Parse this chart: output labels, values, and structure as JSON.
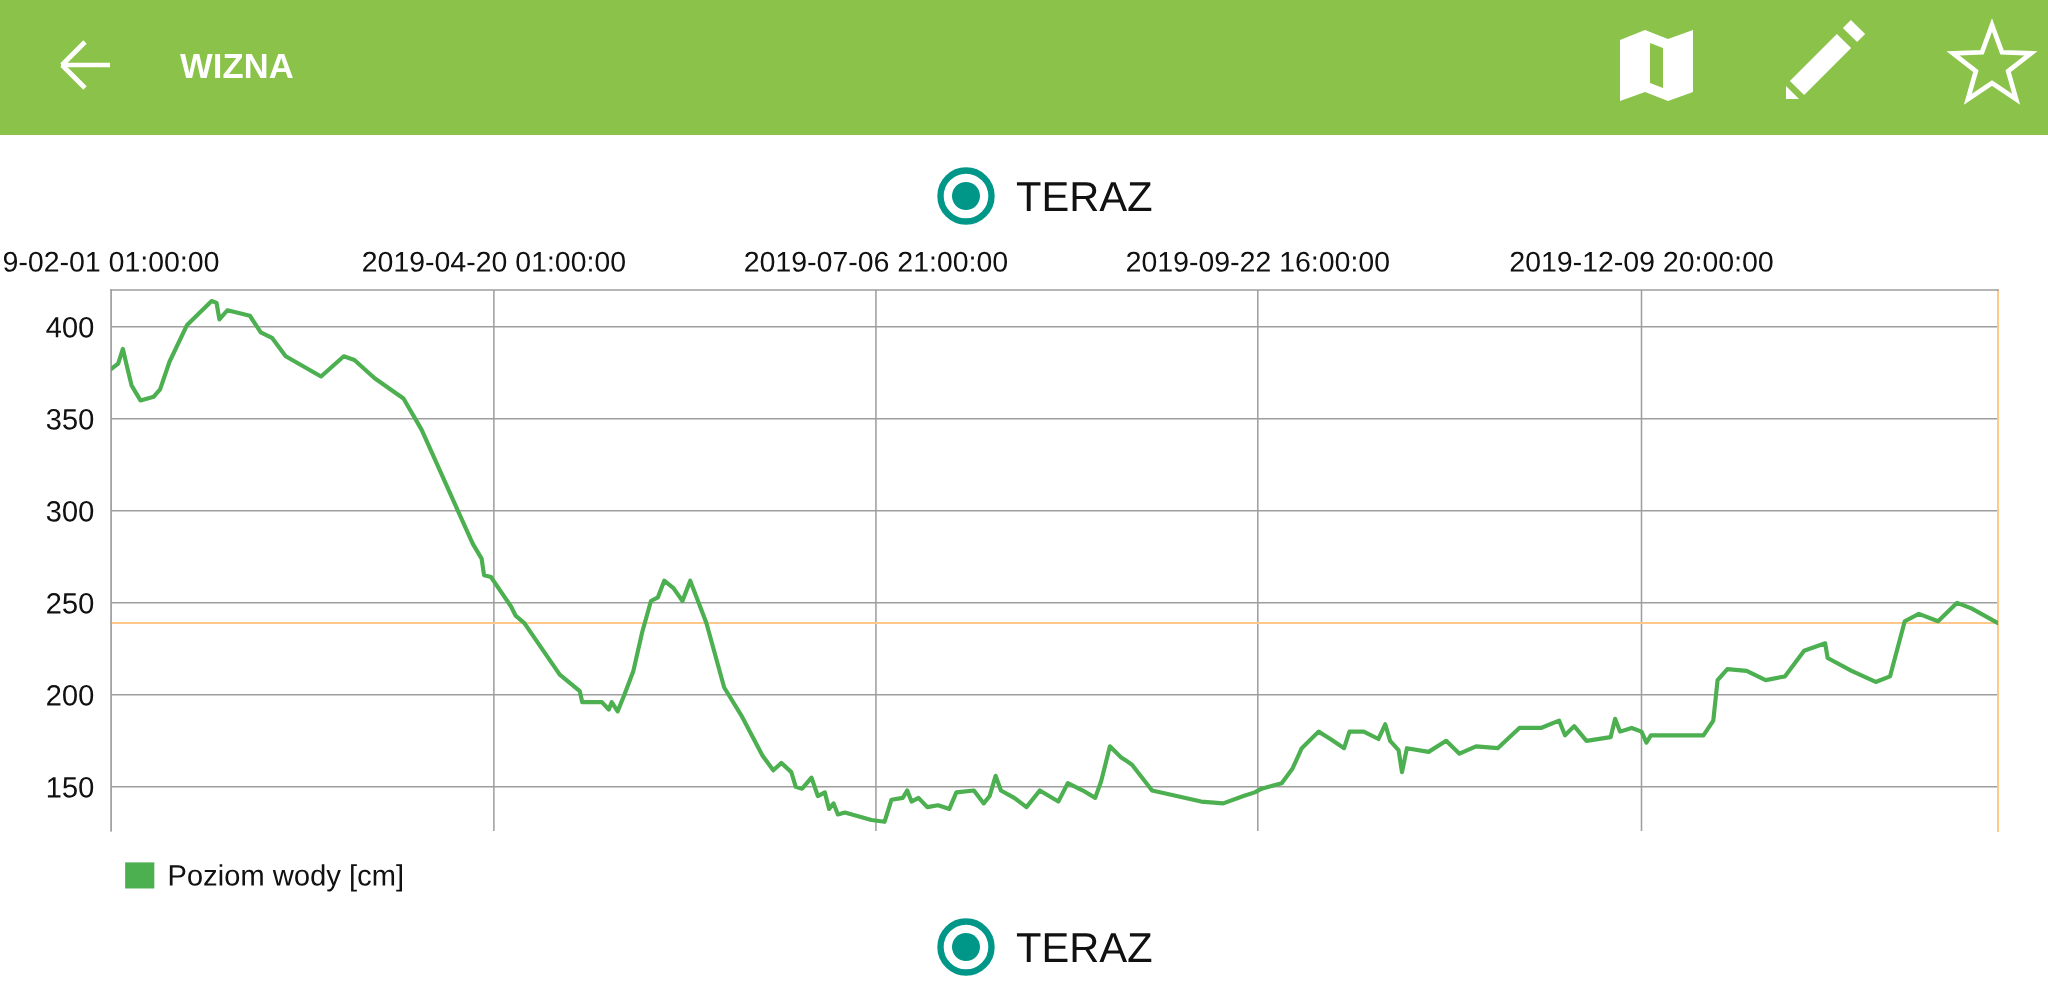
{
  "chart_data": {
    "type": "line",
    "title": "WIZNA",
    "annotations": [
      "TERAZ",
      "TERAZ"
    ],
    "x": [
      "2019-02-01T01:00",
      "2019-02-02T12:00",
      "2019-02-03T11:00",
      "2019-02-04T08:00",
      "2019-02-05T06:00",
      "2019-02-07T01:00",
      "2019-02-09T18:00",
      "2019-02-11T01:00",
      "2019-02-12T23:00",
      "2019-02-16T13:00",
      "2019-02-21T13:00",
      "2019-02-22T13:00",
      "2019-02-23T03:00",
      "2019-02-24T18:00",
      "2019-03-01T08:00",
      "2019-03-03T13:00",
      "2019-03-05T20:00",
      "2019-03-08T15:00",
      "2019-03-15T20:00",
      "2019-03-20T11:00",
      "2019-03-22T15:00",
      "2019-03-26T18:00",
      "2019-04-01T15:00",
      "2019-04-05T08:00",
      "2019-04-12T01:00",
      "2019-04-15T18:00",
      "2019-04-17T13:00",
      "2019-04-18T01:00",
      "2019-04-19T11:00",
      "2019-04-23T13:00",
      "2019-04-24T11:00",
      "2019-04-26T06:00",
      "2019-05-03T11:00",
      "2019-05-07T13:00",
      "2019-05-08T01:00",
      "2019-05-12T01:00",
      "2019-05-13T11:00",
      "2019-05-14T01:00",
      "2019-05-15T06:00",
      "2019-05-16T15:00",
      "2019-05-18T11:00",
      "2019-05-20T06:00",
      "2019-05-22T01:00",
      "2019-05-23T11:00",
      "2019-05-24T18:00",
      "2019-05-26T15:00",
      "2019-05-28T11:00",
      "2019-05-30T01:00",
      "2019-06-02T08:00",
      "2019-06-05T23:00",
      "2019-06-09T15:00",
      "2019-06-13T18:00",
      "2019-06-15T23:00",
      "2019-06-17T15:00",
      "2019-06-19T15:00",
      "2019-06-20T13:00",
      "2019-06-21T20:00",
      "2019-06-23T18:00",
      "2019-06-25T01:00",
      "2019-06-26T11:00",
      "2019-06-27T08:00",
      "2019-06-28T06:00",
      "2019-06-29T03:00",
      "2019-06-30T13:00",
      "2019-07-05T23:00",
      "2019-07-08T15:00",
      "2019-07-10T01:00",
      "2019-07-12T08:00",
      "2019-07-13T06:00",
      "2019-07-14T03:00",
      "2019-07-15T13:00",
      "2019-07-17T08:00",
      "2019-07-19T13:00",
      "2019-07-21T20:00",
      "2019-07-23T06:00",
      "2019-07-26T20:00",
      "2019-07-28T20:00",
      "2019-07-30T01:00",
      "2019-07-31T06:00",
      "2019-08-01T08:00",
      "2019-08-04T01:00",
      "2019-08-06T13:00",
      "2019-08-09T06:00",
      "2019-08-13T01:00",
      "2019-08-14T23:00",
      "2019-08-18T01:00",
      "2019-08-20T13:00",
      "2019-08-21T18:00",
      "2019-08-23T13:00",
      "2019-08-25T20:00",
      "2019-08-26T23:00",
      "2019-08-28T01:00",
      "2019-09-01T03:00",
      "2019-09-06T03:00",
      "2019-09-11T03:00",
      "2019-09-15T15:00",
      "2019-09-19T18:00",
      "2019-09-22T01:00",
      "2019-09-23T11:00",
      "2019-09-27T13:00",
      "2019-09-29T18:00",
      "2019-10-01T15:00",
      "2019-10-05T01:00",
      "2019-10-07T11:00",
      "2019-10-10T06:00",
      "2019-10-11T08:00",
      "2019-10-14T06:00",
      "2019-10-17T06:00",
      "2019-10-18T15:00",
      "2019-10-19T15:00",
      "2019-10-21T08:00",
      "2019-10-22T01:00",
      "2019-10-23T01:00",
      "2019-10-27T11:00",
      "2019-10-31T01:00",
      "2019-11-02T18:00",
      "2019-11-06T03:00",
      "2019-11-10T13:00",
      "2019-11-14T23:00",
      "2019-11-19T08:00",
      "2019-11-23T01:00",
      "2019-11-24T06:00",
      "2019-11-26T03:00",
      "2019-11-28T15:00",
      "2019-12-03T13:00",
      "2019-12-04T11:00",
      "2019-12-05T11:00",
      "2019-12-07T20:00",
      "2019-12-09T20:00",
      "2019-12-10T20:00",
      "2019-12-11T18:00",
      "2019-12-22T11:00",
      "2019-12-24T11:00",
      "2019-12-25T08:00",
      "2019-12-27T08:00",
      "2019-12-31T06:00",
      "2020-01-04T03:00",
      "2020-01-08T01:00",
      "2020-01-11T23:00",
      "2020-01-16T06:00",
      "2020-01-16T18:00",
      "2020-01-21T15:00",
      "2020-01-26T13:00",
      "2020-01-29T11:00",
      "2020-02-01T11:00",
      "2020-02-04T08:00",
      "2020-02-08T06:00",
      "2020-02-12T03:00",
      "2020-02-15T01:00",
      "2020-02-20T11:00"
    ],
    "series": [
      {
        "name": "Poziom wody [cm]",
        "color": "#4caf50",
        "values": [
          377,
          380,
          388,
          378,
          368,
          360,
          362,
          366,
          381,
          401,
          414,
          413,
          404,
          409,
          406,
          397,
          394,
          384,
          373,
          384,
          382,
          372,
          361,
          344,
          304,
          282,
          274,
          265,
          264,
          248,
          243,
          239,
          211,
          202,
          196,
          196,
          192,
          196,
          191,
          200,
          213,
          234,
          251,
          253,
          262,
          258,
          251,
          262,
          239,
          204,
          188,
          167,
          159,
          163,
          158,
          150,
          149,
          155,
          145,
          147,
          138,
          141,
          135,
          136,
          132,
          131,
          143,
          144,
          148,
          142,
          144,
          139,
          140,
          138,
          147,
          148,
          141,
          145,
          156,
          148,
          144,
          139,
          148,
          142,
          152,
          148,
          144,
          153,
          172,
          166,
          164,
          162,
          148,
          145,
          142,
          141,
          145,
          147,
          149,
          152,
          160,
          171,
          180,
          176,
          171,
          180,
          180,
          176,
          184,
          175,
          170,
          158,
          171,
          169,
          175,
          168,
          172,
          171,
          182,
          182,
          186,
          178,
          183,
          175,
          177,
          187,
          180,
          182,
          180,
          174,
          178,
          178,
          186,
          208,
          214,
          213,
          208,
          210,
          224,
          228,
          220,
          213,
          207,
          210,
          240,
          244,
          240,
          250,
          247,
          239
        ]
      }
    ],
    "xlim": [
      "2019-02-01T01:00",
      "2020-02-20T11:00"
    ],
    "xticks": [
      {
        "value": "2019-02-01T01:00",
        "label": "9-02-01 01:00:00"
      },
      {
        "value": "2019-04-20T01:00",
        "label": "2019-04-20 01:00:00"
      },
      {
        "value": "2019-07-06T21:00",
        "label": "2019-07-06 21:00:00"
      },
      {
        "value": "2019-09-22T16:00",
        "label": "2019-09-22 16:00:00"
      },
      {
        "value": "2019-12-09T20:00",
        "label": "2019-12-09 20:00:00"
      }
    ],
    "ylim": [
      126,
      420
    ],
    "yticks": [
      150,
      200,
      250,
      300,
      350,
      400
    ],
    "ref_lines": [
      {
        "axis": "y",
        "value": 239,
        "color": "#ffc88a"
      },
      {
        "axis": "x",
        "value": "2020-02-20T11:00",
        "color": "#ffc88a"
      }
    ],
    "grid": true,
    "legend": "bottom left"
  }
}
